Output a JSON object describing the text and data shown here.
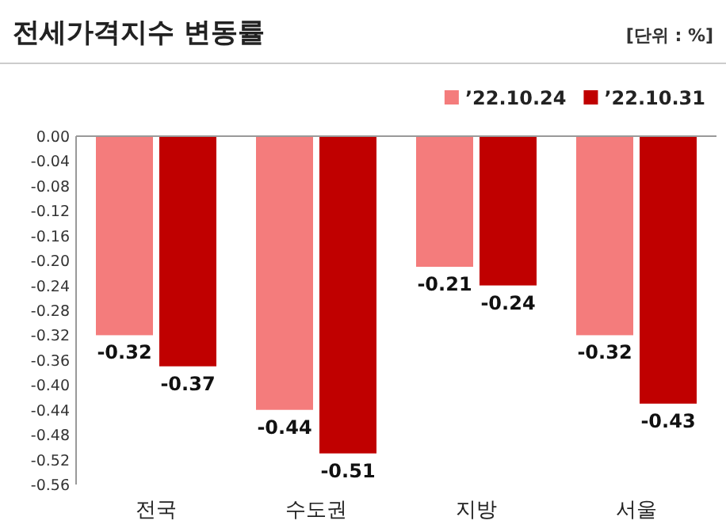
{
  "chart_data": {
    "type": "bar",
    "title": "전세가격지수 변동률",
    "annotations": [
      "[단위 : %]"
    ],
    "categories": [
      "전국",
      "수도권",
      "지방",
      "서울"
    ],
    "series": [
      {
        "name": "’22.10.24",
        "color": "#f47c7c",
        "values": [
          -0.32,
          -0.44,
          -0.21,
          -0.32
        ]
      },
      {
        "name": "’22.10.31",
        "color": "#c00000",
        "values": [
          -0.37,
          -0.51,
          -0.24,
          -0.43
        ]
      }
    ],
    "ylim": [
      -0.56,
      0
    ],
    "yticks": [
      "0.00",
      "-0.04",
      "-0.08",
      "-0.12",
      "-0.16",
      "-0.20",
      "-0.24",
      "-0.28",
      "-0.32",
      "-0.36",
      "-0.40",
      "-0.44",
      "-0.48",
      "-0.52",
      "-0.56"
    ],
    "data_labels": true,
    "legend": "top right",
    "grid": false
  }
}
